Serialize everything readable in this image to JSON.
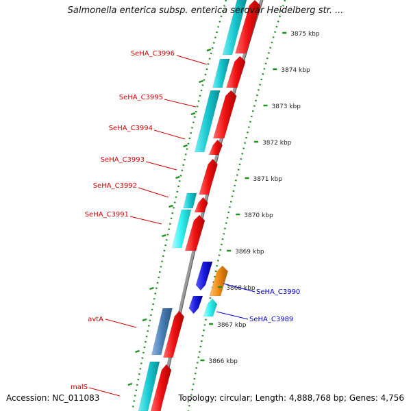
{
  "title": "Salmonella enterica subsp. enterica serovar Heidelberg str. ...",
  "footer": {
    "accession": "Accession: NC_011083",
    "summary": "Topology: circular; Length: 4,888,768 bp; Genes: 4,756"
  },
  "ticks": [
    "3875 kbp",
    "3874 kbp",
    "3873 kbp",
    "3872 kbp",
    "3871 kbp",
    "3870 kbp",
    "3869 kbp",
    "3868 kbp",
    "3867 kbp",
    "3866 kbp"
  ],
  "gene_labels": [
    {
      "name": "SeHA_C3996",
      "color": "#cc0000"
    },
    {
      "name": "SeHA_C3995",
      "color": "#cc0000"
    },
    {
      "name": "SeHA_C3994",
      "color": "#cc0000"
    },
    {
      "name": "SeHA_C3993",
      "color": "#cc0000"
    },
    {
      "name": "SeHA_C3992",
      "color": "#cc0000"
    },
    {
      "name": "SeHA_C3991",
      "color": "#cc0000"
    },
    {
      "name": "SeHA_C3990",
      "color": "#0000cc"
    },
    {
      "name": "SeHA_C3989",
      "color": "#0000cc"
    },
    {
      "name": "avtA",
      "color": "#cc0000"
    },
    {
      "name": "malS",
      "color": "#cc0000"
    }
  ],
  "colors": {
    "forward_cds": "#ee1111",
    "reverse_cds": "#1a1adb",
    "cyan_feature": "#17c6cf",
    "light_cyan_feature": "#2ef0f0",
    "steel_feature": "#4a7fb8",
    "orange_feature": "#f08a10",
    "backbone": "#8a8a8a",
    "tick_dots": "#1f8f1f"
  }
}
